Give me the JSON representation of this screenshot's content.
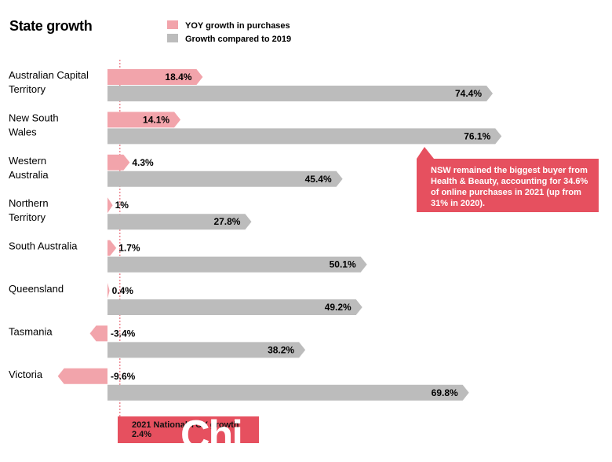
{
  "chart_data": {
    "type": "bar",
    "orientation": "horizontal",
    "title": "State growth",
    "legend_position": "top",
    "categories": [
      [
        "Australian Capital",
        "Territory"
      ],
      [
        "New South",
        "Wales"
      ],
      [
        "Western",
        "Australia"
      ],
      [
        "Northern",
        "Territory"
      ],
      [
        "South Australia"
      ],
      [
        "Queensland"
      ],
      [
        "Tasmania"
      ],
      [
        "Victoria"
      ]
    ],
    "series": [
      {
        "name": "YOY growth in purchases",
        "color": "#f2a4ab",
        "values": [
          18.4,
          14.1,
          4.3,
          1,
          1.7,
          0.4,
          -3.4,
          -9.6
        ],
        "labels": [
          "18.4%",
          "14.1%",
          "4.3%",
          "1%",
          "1.7%",
          "0.4%",
          "-3.4%",
          "-9.6%"
        ]
      },
      {
        "name": "Growth compared to 2019",
        "color": "#bcbcbc",
        "values": [
          74.4,
          76.1,
          45.4,
          27.8,
          50.1,
          49.2,
          38.2,
          69.8
        ],
        "labels": [
          "74.4%",
          "76.1%",
          "45.4%",
          "27.8%",
          "50.1%",
          "49.2%",
          "38.2%",
          "69.8%"
        ]
      }
    ],
    "reference_line": {
      "value": 2.4,
      "label": "2021 National YOY growth",
      "value_label": "2.4%"
    },
    "annotation": "NSW remained the biggest buyer from Health & Beauty, accounting for 34.6% of online purchases in 2021 (up from 31% in 2020).",
    "annotation_color": "#e6505f",
    "watermark": "Chi"
  }
}
